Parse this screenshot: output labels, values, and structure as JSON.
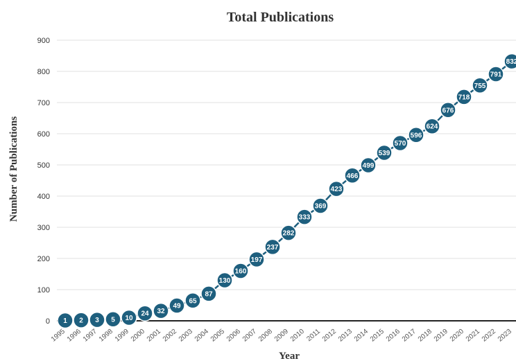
{
  "chart_data": {
    "type": "line",
    "title": "Total Publications",
    "xlabel": "Year",
    "ylabel": "Number of Publications",
    "ylim": [
      0,
      900
    ],
    "yticks": [
      0,
      100,
      200,
      300,
      400,
      500,
      600,
      700,
      800,
      900
    ],
    "grid": true,
    "legend": "none",
    "x": [
      "1995",
      "1996",
      "1997",
      "1998",
      "1999",
      "2000",
      "2001",
      "2002",
      "2003",
      "2004",
      "2005",
      "2006",
      "2007",
      "2008",
      "2009",
      "2010",
      "2011",
      "2012",
      "2013",
      "2014",
      "2015",
      "2016",
      "2017",
      "2018",
      "2019",
      "2020",
      "2021",
      "2022",
      "2023"
    ],
    "series": [
      {
        "values": [
          1,
          2,
          3,
          5,
          10,
          24,
          32,
          49,
          65,
          87,
          130,
          160,
          197,
          237,
          282,
          333,
          369,
          423,
          466,
          499,
          539,
          570,
          596,
          624,
          676,
          718,
          755,
          791,
          832
        ],
        "color": "#1e5f7e"
      }
    ]
  }
}
